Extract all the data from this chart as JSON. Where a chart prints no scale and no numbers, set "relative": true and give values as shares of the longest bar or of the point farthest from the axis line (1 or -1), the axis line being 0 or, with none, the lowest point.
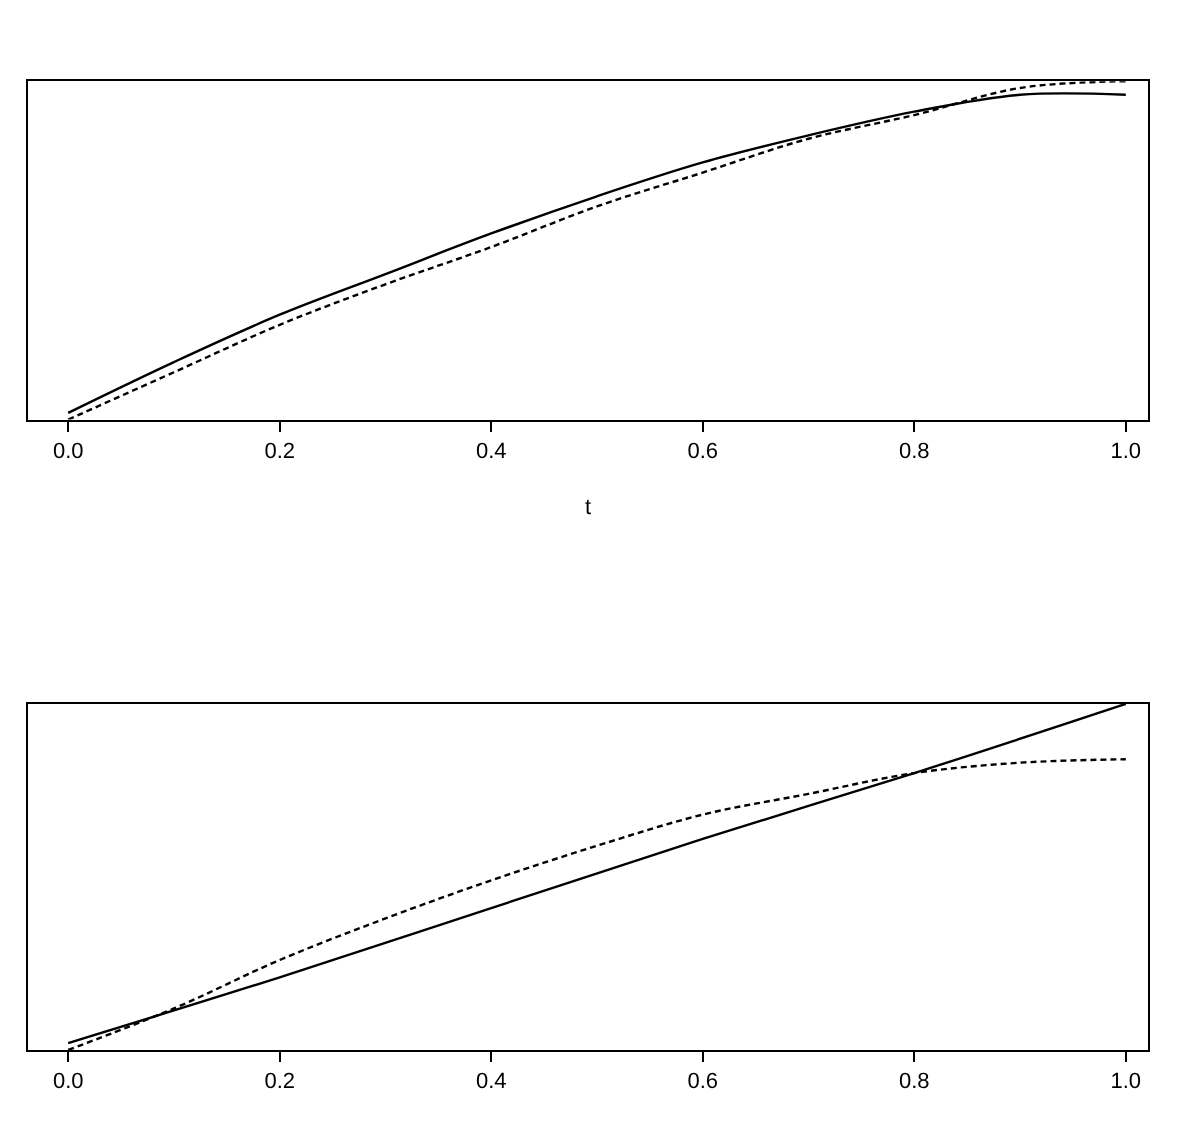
{
  "chart_data": [
    {
      "type": "line",
      "xlabel": "t",
      "relative": true,
      "tick_labels": "x",
      "xlim": [
        -0.038,
        1.021
      ],
      "xticks": [
        {
          "value": 0,
          "label": "0.0"
        },
        {
          "value": 0.2,
          "label": "0.2"
        },
        {
          "value": 0.4,
          "label": "0.4"
        },
        {
          "value": 0.6,
          "label": "0.6"
        },
        {
          "value": 0.8,
          "label": "0.8"
        },
        {
          "value": 1,
          "label": "1.0"
        }
      ],
      "series": [
        {
          "color": "#000000",
          "line_style": "solid",
          "x": [
            0,
            0.1,
            0.2,
            0.3,
            0.4,
            0.5,
            0.6,
            0.7,
            0.8,
            0.9,
            1.0
          ],
          "values": [
            0.02,
            0.17,
            0.31,
            0.43,
            0.55,
            0.66,
            0.76,
            0.84,
            0.91,
            0.96,
            0.96
          ]
        },
        {
          "color": "#000000",
          "line_style": "dashed",
          "x": [
            0,
            0.1,
            0.2,
            0.3,
            0.4,
            0.5,
            0.6,
            0.7,
            0.8,
            0.9,
            1.0
          ],
          "values": [
            0,
            0.14,
            0.28,
            0.4,
            0.51,
            0.63,
            0.73,
            0.83,
            0.9,
            0.98,
            1.0
          ]
        }
      ]
    },
    {
      "type": "line",
      "relative": true,
      "tick_labels": "x",
      "xlim": [
        -0.038,
        1.021
      ],
      "xticks": [
        {
          "value": 0,
          "label": "0.0"
        },
        {
          "value": 0.2,
          "label": "0.2"
        },
        {
          "value": 0.4,
          "label": "0.4"
        },
        {
          "value": 0.6,
          "label": "0.6"
        },
        {
          "value": 0.8,
          "label": "0.8"
        },
        {
          "value": 1,
          "label": "1.0"
        }
      ],
      "series": [
        {
          "color": "#000000",
          "line_style": "solid",
          "x": [
            0,
            0.2,
            0.4,
            0.6,
            0.8,
            1.0
          ],
          "values": [
            0.02,
            0.21,
            0.41,
            0.61,
            0.8,
            1.0
          ]
        },
        {
          "color": "#000000",
          "line_style": "dashed",
          "x": [
            0,
            0.1,
            0.2,
            0.3,
            0.4,
            0.5,
            0.6,
            0.7,
            0.8,
            0.9,
            1.0
          ],
          "values": [
            0,
            0.12,
            0.26,
            0.38,
            0.49,
            0.59,
            0.68,
            0.74,
            0.8,
            0.83,
            0.84
          ]
        }
      ]
    }
  ]
}
